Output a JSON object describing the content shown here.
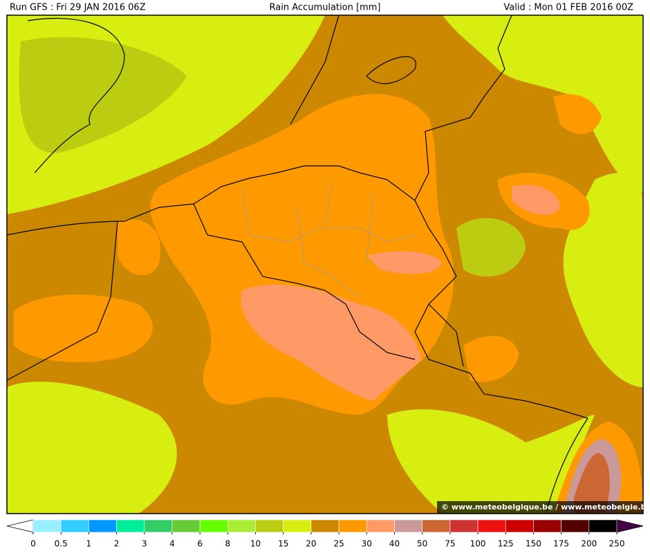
{
  "header": {
    "run": "Run GFS : Fri 29 JAN 2016 06Z",
    "title": "Rain Accumulation [mm]",
    "valid": "Valid : Mon 01 FEB 2016 00Z"
  },
  "watermark": "© www.meteobelgique.be / www.meteobelgie.be",
  "legend": {
    "ticks": [
      0,
      0.5,
      1,
      2,
      3,
      4,
      6,
      8,
      10,
      15,
      20,
      25,
      30,
      40,
      50,
      75,
      100,
      125,
      150,
      175,
      200,
      250
    ],
    "colors": [
      "#99eeff",
      "#33ccff",
      "#0099ff",
      "#00ee99",
      "#33cc66",
      "#66cc33",
      "#66ff00",
      "#aaee33",
      "#bbcc11",
      "#d8ee10",
      "#cc8800",
      "#ff9900",
      "#ff9966",
      "#cc9999",
      "#cc6633",
      "#cc3333",
      "#ee1111",
      "#cc0000",
      "#990000",
      "#550000",
      "#000000"
    ],
    "under_color": "#ffffff",
    "over_color": "#440044"
  }
}
